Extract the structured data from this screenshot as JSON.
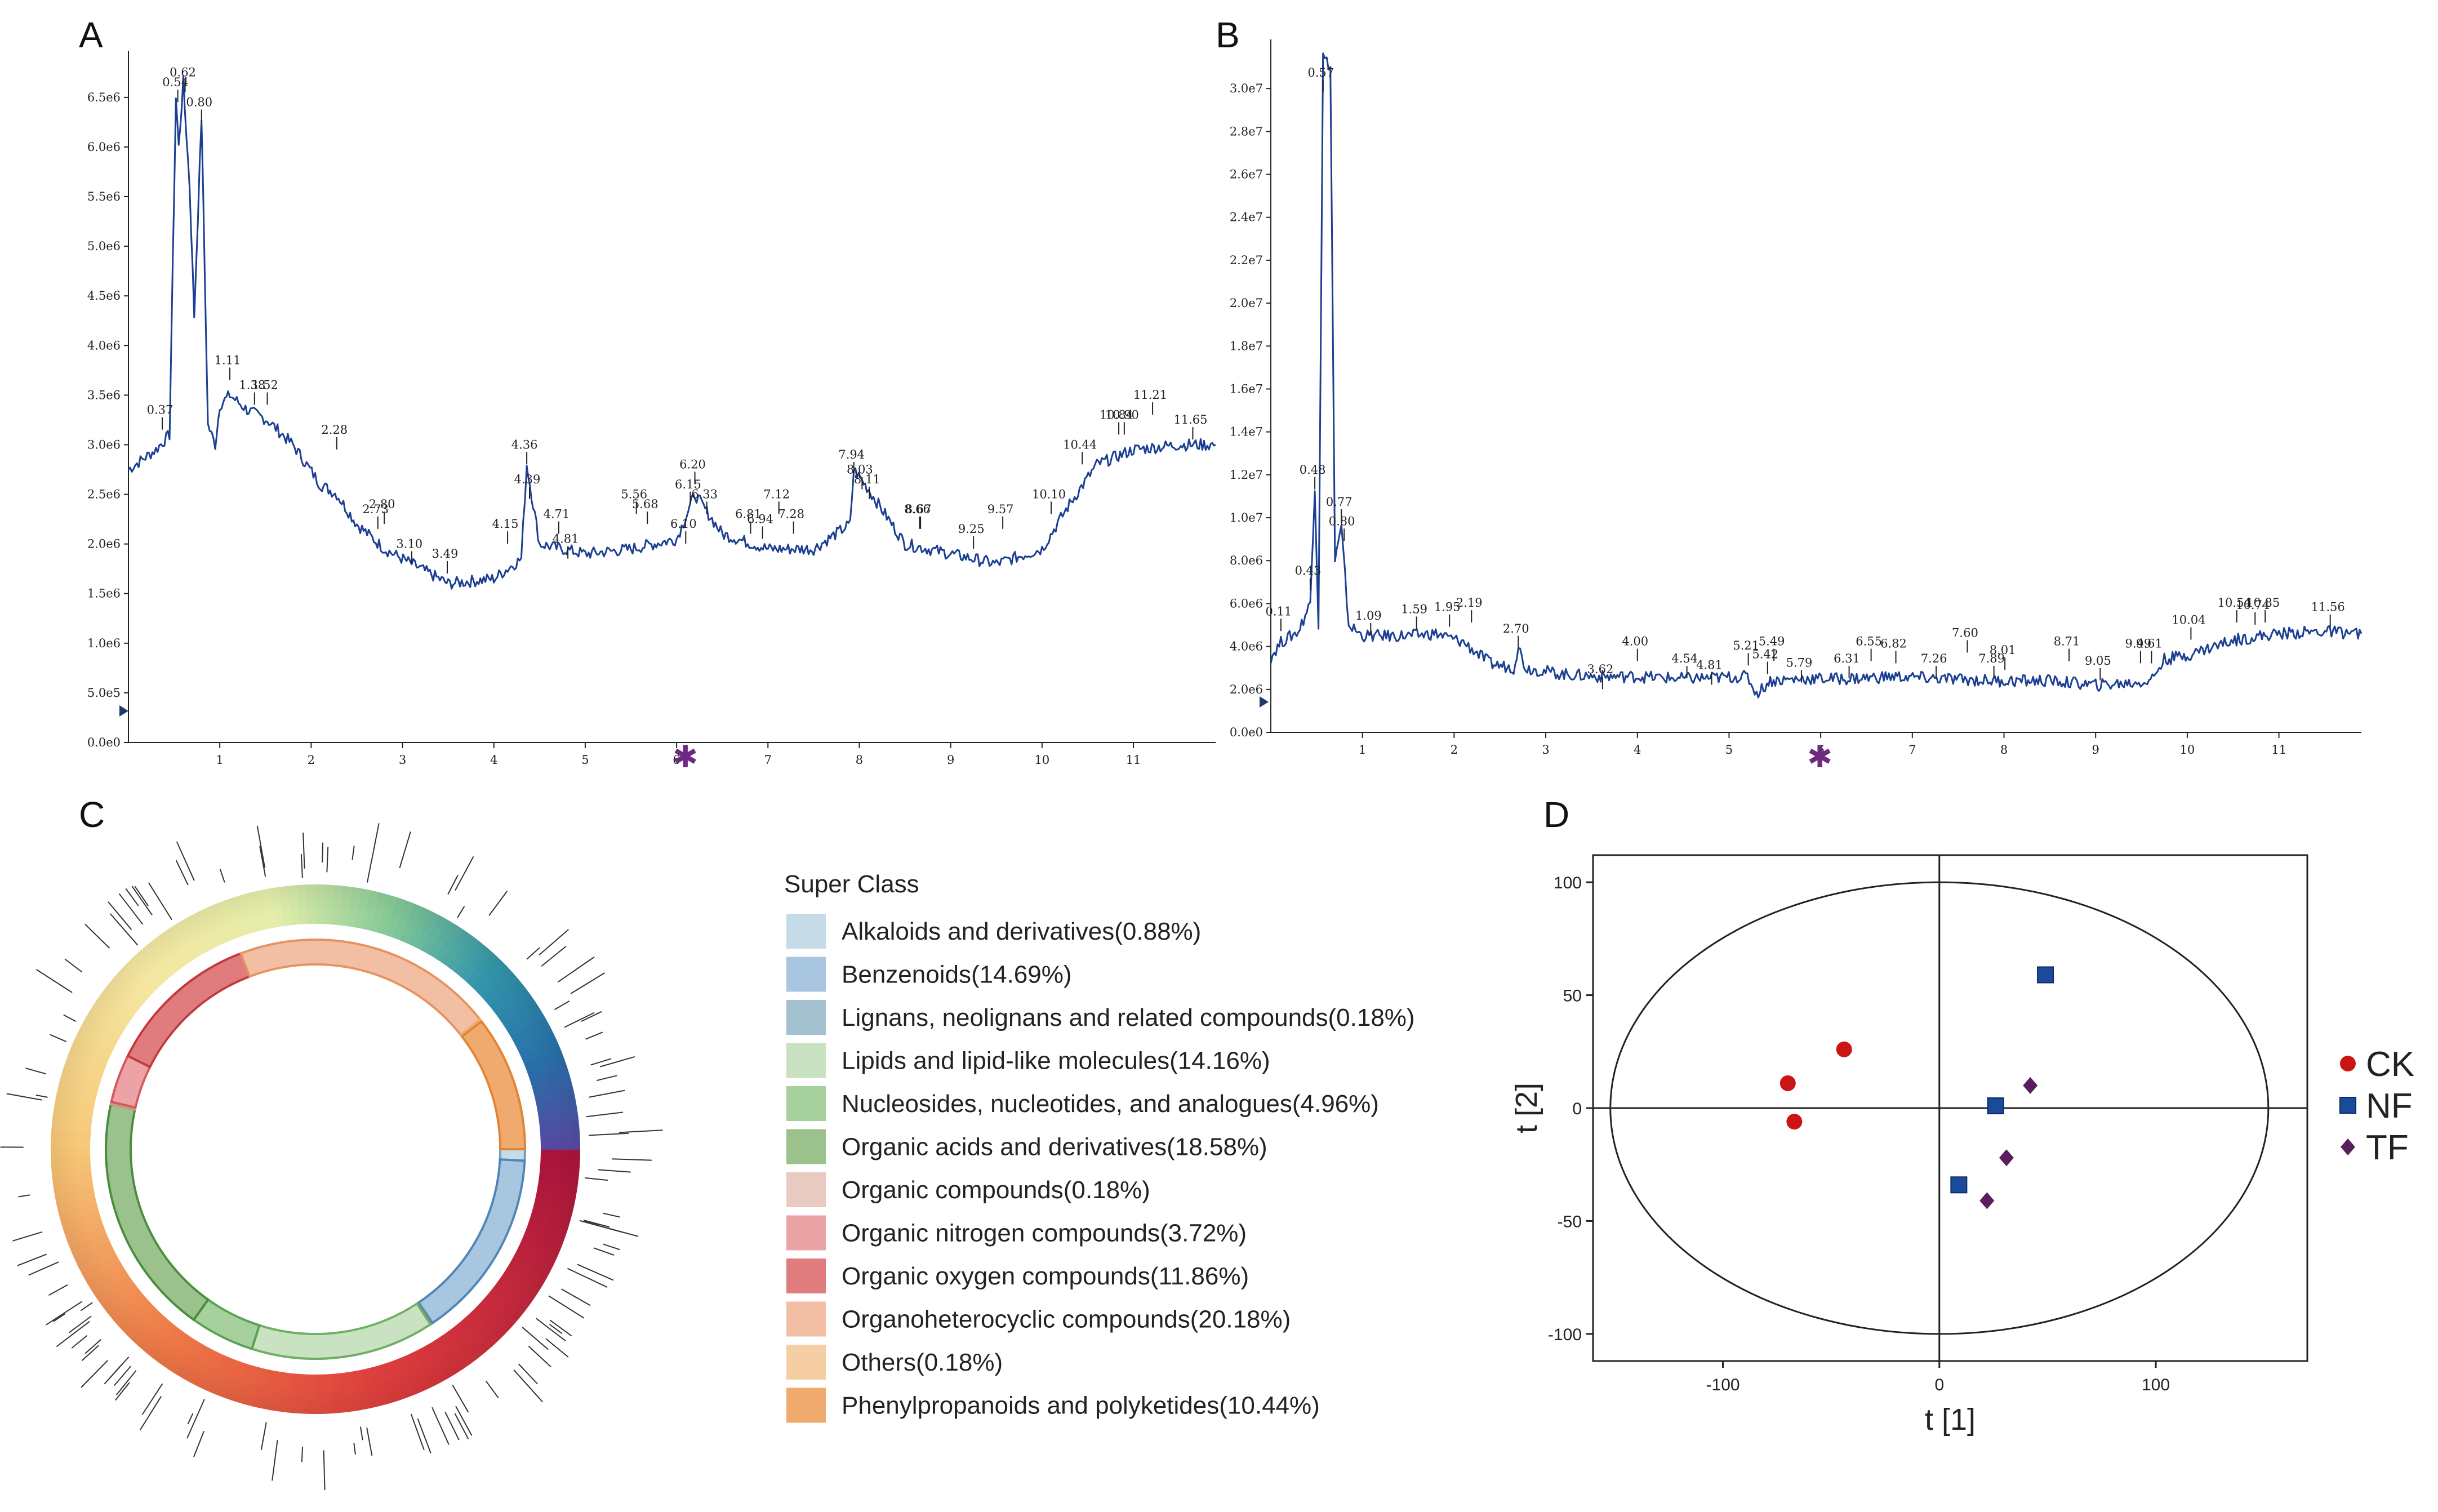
{
  "chart_data": [
    {
      "panel": "A",
      "type": "line",
      "title": "",
      "xlabel": "",
      "ylabel": "",
      "xlim": [
        0,
        11.9
      ],
      "ylim": [
        0,
        6800000.0
      ],
      "x_ticks": [
        "1",
        "2",
        "3",
        "4",
        "5",
        "6",
        "7",
        "8",
        "9",
        "10",
        "11"
      ],
      "y_ticks": [
        "0.0e0",
        "5.0e5",
        "1.0e6",
        "1.5e6",
        "2.0e6",
        "2.5e6",
        "3.0e6",
        "3.5e6",
        "4.0e6",
        "4.5e6",
        "5.0e6",
        "5.5e6",
        "6.0e6",
        "6.5e6"
      ],
      "trace": [
        [
          0,
          2750000.0
        ],
        [
          0.3,
          2950000.0
        ],
        [
          0.45,
          3100000.0
        ],
        [
          0.52,
          6500000.0
        ],
        [
          0.55,
          6000000.0
        ],
        [
          0.6,
          6650000.0
        ],
        [
          0.67,
          5600000.0
        ],
        [
          0.72,
          4300000.0
        ],
        [
          0.8,
          6300000.0
        ],
        [
          0.87,
          3200000.0
        ],
        [
          0.95,
          3000000.0
        ],
        [
          1.0,
          3400000.0
        ],
        [
          1.11,
          3500000.0
        ],
        [
          1.3,
          3350000.0
        ],
        [
          1.52,
          3250000.0
        ],
        [
          1.8,
          3000000.0
        ],
        [
          2.1,
          2600000.0
        ],
        [
          2.28,
          2500000.0
        ],
        [
          2.5,
          2200000.0
        ],
        [
          2.8,
          1950000.0
        ],
        [
          3.1,
          1800000.0
        ],
        [
          3.5,
          1600000.0
        ],
        [
          4.0,
          1650000.0
        ],
        [
          4.3,
          1850000.0
        ],
        [
          4.36,
          2800000.0
        ],
        [
          4.5,
          2000000.0
        ],
        [
          5.0,
          1900000.0
        ],
        [
          5.5,
          1950000.0
        ],
        [
          6.0,
          2050000.0
        ],
        [
          6.2,
          2500000.0
        ],
        [
          6.5,
          2100000.0
        ],
        [
          7.0,
          1950000.0
        ],
        [
          7.5,
          1950000.0
        ],
        [
          7.9,
          2200000.0
        ],
        [
          7.94,
          2750000.0
        ],
        [
          8.1,
          2550000.0
        ],
        [
          8.5,
          2000000.0
        ],
        [
          9.0,
          1900000.0
        ],
        [
          9.5,
          1800000.0
        ],
        [
          10.0,
          1950000.0
        ],
        [
          10.3,
          2400000.0
        ],
        [
          10.6,
          2800000.0
        ],
        [
          11.0,
          2950000.0
        ],
        [
          11.5,
          3000000.0
        ],
        [
          11.9,
          3000000.0
        ]
      ],
      "peak_labels": [
        {
          "x": 0.62,
          "y": 6700000.0,
          "label": "0.62"
        },
        {
          "x": 0.54,
          "y": 6600000.0,
          "label": "0.54"
        },
        {
          "x": 0.8,
          "y": 6400000.0,
          "label": "0.80"
        },
        {
          "x": 0.37,
          "y": 3300000.0,
          "label": "0.37"
        },
        {
          "x": 1.11,
          "y": 3800000.0,
          "label": "1.11"
        },
        {
          "x": 1.38,
          "y": 3550000.0,
          "label": "1.38"
        },
        {
          "x": 1.52,
          "y": 3550000.0,
          "label": "1.52"
        },
        {
          "x": 2.28,
          "y": 3100000.0,
          "label": "2.28"
        },
        {
          "x": 2.73,
          "y": 2300000.0,
          "label": "2.73"
        },
        {
          "x": 2.8,
          "y": 2350000.0,
          "label": "2.80"
        },
        {
          "x": 3.1,
          "y": 1950000.0,
          "label": "3.10"
        },
        {
          "x": 3.49,
          "y": 1850000.0,
          "label": "3.49"
        },
        {
          "x": 4.15,
          "y": 2150000.0,
          "label": "4.15"
        },
        {
          "x": 4.36,
          "y": 2950000.0,
          "label": "4.36"
        },
        {
          "x": 4.39,
          "y": 2600000.0,
          "label": "4.39"
        },
        {
          "x": 4.71,
          "y": 2250000.0,
          "label": "4.71"
        },
        {
          "x": 4.81,
          "y": 2000000.0,
          "label": "4.81"
        },
        {
          "x": 5.56,
          "y": 2450000.0,
          "label": "5.56"
        },
        {
          "x": 5.68,
          "y": 2350000.0,
          "label": "5.68"
        },
        {
          "x": 6.15,
          "y": 2550000.0,
          "label": "6.15"
        },
        {
          "x": 6.1,
          "y": 2150000.0,
          "label": "6.10"
        },
        {
          "x": 6.2,
          "y": 2750000.0,
          "label": "6.20"
        },
        {
          "x": 6.33,
          "y": 2450000.0,
          "label": "6.33"
        },
        {
          "x": 6.81,
          "y": 2250000.0,
          "label": "6.81"
        },
        {
          "x": 7.12,
          "y": 2450000.0,
          "label": "7.12"
        },
        {
          "x": 6.94,
          "y": 2200000.0,
          "label": "6.94"
        },
        {
          "x": 7.28,
          "y": 2250000.0,
          "label": "7.28"
        },
        {
          "x": 7.94,
          "y": 2850000.0,
          "label": "7.94"
        },
        {
          "x": 8.11,
          "y": 2600000.0,
          "label": "8.11"
        },
        {
          "x": 8.03,
          "y": 2700000.0,
          "label": "8.03"
        },
        {
          "x": 8.67,
          "y": 2300000.0,
          "label": "8.67"
        },
        {
          "x": 8.66,
          "y": 2300000.0,
          "label": "8.66"
        },
        {
          "x": 9.25,
          "y": 2100000.0,
          "label": "9.25"
        },
        {
          "x": 9.57,
          "y": 2300000.0,
          "label": "9.57"
        },
        {
          "x": 10.1,
          "y": 2450000.0,
          "label": "10.10"
        },
        {
          "x": 10.44,
          "y": 2950000.0,
          "label": "10.44"
        },
        {
          "x": 10.84,
          "y": 3250000.0,
          "label": "10.84"
        },
        {
          "x": 10.9,
          "y": 3250000.0,
          "label": "10.90"
        },
        {
          "x": 11.21,
          "y": 3450000.0,
          "label": "11.21"
        },
        {
          "x": 11.65,
          "y": 3200000.0,
          "label": "11.65"
        }
      ]
    },
    {
      "panel": "B",
      "type": "line",
      "title": "",
      "xlabel": "",
      "ylabel": "",
      "xlim": [
        0,
        11.9
      ],
      "ylim": [
        0,
        31500000.0
      ],
      "x_ticks": [
        "1",
        "2",
        "3",
        "4",
        "5",
        "6",
        "7",
        "8",
        "9",
        "10",
        "11"
      ],
      "y_ticks": [
        "0.0e0",
        "2.0e6",
        "4.0e6",
        "6.0e6",
        "8.0e6",
        "1.0e7",
        "1.2e7",
        "1.4e7",
        "1.6e7",
        "1.8e7",
        "2.0e7",
        "2.2e7",
        "2.4e7",
        "2.6e7",
        "2.8e7",
        "3.0e7"
      ],
      "trace": [
        [
          0,
          3500000.0
        ],
        [
          0.11,
          4200000.0
        ],
        [
          0.3,
          4700000.0
        ],
        [
          0.43,
          6000000.0
        ],
        [
          0.48,
          11500000.0
        ],
        [
          0.52,
          5000000.0
        ],
        [
          0.57,
          31500000.0
        ],
        [
          0.65,
          31000000.0
        ],
        [
          0.7,
          8000000.0
        ],
        [
          0.77,
          9500000.0
        ],
        [
          0.85,
          5000000.0
        ],
        [
          1.0,
          4500000.0
        ],
        [
          1.5,
          4500000.0
        ],
        [
          1.8,
          4600000.0
        ],
        [
          2.1,
          4200000.0
        ],
        [
          2.4,
          3200000.0
        ],
        [
          2.65,
          3000000.0
        ],
        [
          2.7,
          4000000.0
        ],
        [
          2.78,
          3000000.0
        ],
        [
          3.2,
          2700000.0
        ],
        [
          3.6,
          2600000.0
        ],
        [
          4.0,
          2600000.0
        ],
        [
          4.5,
          2500000.0
        ],
        [
          5.2,
          2600000.0
        ],
        [
          5.3,
          1800000.0
        ],
        [
          5.45,
          2400000.0
        ],
        [
          5.8,
          2500000.0
        ],
        [
          6.3,
          2500000.0
        ],
        [
          6.8,
          2600000.0
        ],
        [
          7.3,
          2500000.0
        ],
        [
          7.9,
          2400000.0
        ],
        [
          8.5,
          2400000.0
        ],
        [
          9.0,
          2200000.0
        ],
        [
          9.4,
          2300000.0
        ],
        [
          9.6,
          2400000.0
        ],
        [
          9.75,
          3400000.0
        ],
        [
          10.0,
          3600000.0
        ],
        [
          10.5,
          4300000.0
        ],
        [
          11.0,
          4600000.0
        ],
        [
          11.5,
          4700000.0
        ],
        [
          11.9,
          4600000.0
        ]
      ],
      "peak_labels": [
        {
          "x": 0.57,
          "y": 30500000.0,
          "label": "0.57"
        },
        {
          "x": 0.48,
          "y": 12000000.0,
          "label": "0.48"
        },
        {
          "x": 0.77,
          "y": 10500000.0,
          "label": "0.77"
        },
        {
          "x": 0.8,
          "y": 9600000.0,
          "label": "0.80"
        },
        {
          "x": 0.43,
          "y": 7300000.0,
          "label": "0.43"
        },
        {
          "x": 0.11,
          "y": 5400000.0,
          "label": "0.11"
        },
        {
          "x": 1.09,
          "y": 5200000.0,
          "label": "1.09"
        },
        {
          "x": 1.59,
          "y": 5500000.0,
          "label": "1.59"
        },
        {
          "x": 1.95,
          "y": 5600000.0,
          "label": "1.95"
        },
        {
          "x": 2.19,
          "y": 5800000.0,
          "label": "2.19"
        },
        {
          "x": 2.7,
          "y": 4600000.0,
          "label": "2.70"
        },
        {
          "x": 3.62,
          "y": 2700000.0,
          "label": "3.62"
        },
        {
          "x": 4.0,
          "y": 4000000.0,
          "label": "4.00"
        },
        {
          "x": 4.54,
          "y": 3200000.0,
          "label": "4.54"
        },
        {
          "x": 4.81,
          "y": 2900000.0,
          "label": "4.81"
        },
        {
          "x": 5.21,
          "y": 3800000.0,
          "label": "5.21"
        },
        {
          "x": 5.42,
          "y": 3400000.0,
          "label": "5.42"
        },
        {
          "x": 5.49,
          "y": 4000000.0,
          "label": "5.49"
        },
        {
          "x": 5.79,
          "y": 3000000.0,
          "label": "5.79"
        },
        {
          "x": 6.55,
          "y": 4000000.0,
          "label": "6.55"
        },
        {
          "x": 6.31,
          "y": 3200000.0,
          "label": "6.31"
        },
        {
          "x": 6.82,
          "y": 3900000.0,
          "label": "6.82"
        },
        {
          "x": 7.6,
          "y": 4400000.0,
          "label": "7.60"
        },
        {
          "x": 7.26,
          "y": 3200000.0,
          "label": "7.26"
        },
        {
          "x": 7.89,
          "y": 3200000.0,
          "label": "7.89"
        },
        {
          "x": 8.01,
          "y": 3600000.0,
          "label": "8.01"
        },
        {
          "x": 8.71,
          "y": 4000000.0,
          "label": "8.71"
        },
        {
          "x": 9.49,
          "y": 3900000.0,
          "label": "9.49"
        },
        {
          "x": 9.05,
          "y": 3100000.0,
          "label": "9.05"
        },
        {
          "x": 9.61,
          "y": 3900000.0,
          "label": "9.61"
        },
        {
          "x": 10.04,
          "y": 5000000.0,
          "label": "10.04"
        },
        {
          "x": 10.54,
          "y": 5800000.0,
          "label": "10.54"
        },
        {
          "x": 10.74,
          "y": 5700000.0,
          "label": "10.74"
        },
        {
          "x": 10.85,
          "y": 5800000.0,
          "label": "10.85"
        },
        {
          "x": 11.56,
          "y": 5600000.0,
          "label": "11.56"
        }
      ]
    },
    {
      "panel": "C",
      "type": "pie",
      "title": "",
      "legend_title": "Super Class",
      "categories": [
        "Alkaloids and derivatives(0.88%)",
        "Benzenoids(14.69%)",
        "Lignans, neolignans and related compounds(0.18%)",
        "Lipids and lipid-like molecules(14.16%)",
        "Nucleosides, nucleotides, and analogues(4.96%)",
        "Organic acids and derivatives(18.58%)",
        "Organic compounds(0.18%)",
        "Organic nitrogen compounds(3.72%)",
        "Organic oxygen compounds(11.86%)",
        "Organoheterocyclic compounds(20.18%)",
        "Others(0.18%)",
        "Phenylpropanoids and polyketides(10.44%)"
      ],
      "values": [
        0.88,
        14.69,
        0.18,
        14.16,
        4.96,
        18.58,
        0.18,
        3.72,
        11.86,
        20.18,
        0.18,
        10.44
      ],
      "colors": [
        "#c6dbe8",
        "#a8c6df",
        "#a4c1cf",
        "#c8e2c2",
        "#a6d19f",
        "#9bc28c",
        "#e8cac0",
        "#eca3a6",
        "#e07b7e",
        "#f2bea4",
        "#f5cfa3",
        "#f0aa6d"
      ]
    },
    {
      "panel": "D",
      "type": "scatter",
      "title": "",
      "xlabel": "t [1]",
      "ylabel": "t [2]",
      "xlim": [
        -160,
        170
      ],
      "ylim": [
        -112,
        112
      ],
      "x_ticks": [
        "-100",
        "0",
        "100"
      ],
      "y_ticks": [
        "100",
        "50",
        "0",
        "-50",
        "-100"
      ],
      "ellipse": {
        "rx": 152,
        "ry": 100
      },
      "series": [
        {
          "name": "CK",
          "color": "#cc1414",
          "marker": "circle",
          "points": [
            [
              -44,
              26
            ],
            [
              -70,
              11
            ],
            [
              -67,
              -6
            ]
          ]
        },
        {
          "name": "NF",
          "color": "#1c4a9a",
          "marker": "square",
          "points": [
            [
              49,
              59
            ],
            [
              26,
              1
            ],
            [
              9,
              -34
            ]
          ]
        },
        {
          "name": "TF",
          "color": "#5a1d5e",
          "marker": "diamond",
          "points": [
            [
              42,
              10
            ],
            [
              31,
              -22
            ],
            [
              22,
              -41
            ]
          ]
        }
      ]
    }
  ],
  "labels": {
    "A": "A",
    "B": "B",
    "C": "C",
    "D": "D"
  },
  "legend": {
    "title": "Super Class"
  }
}
